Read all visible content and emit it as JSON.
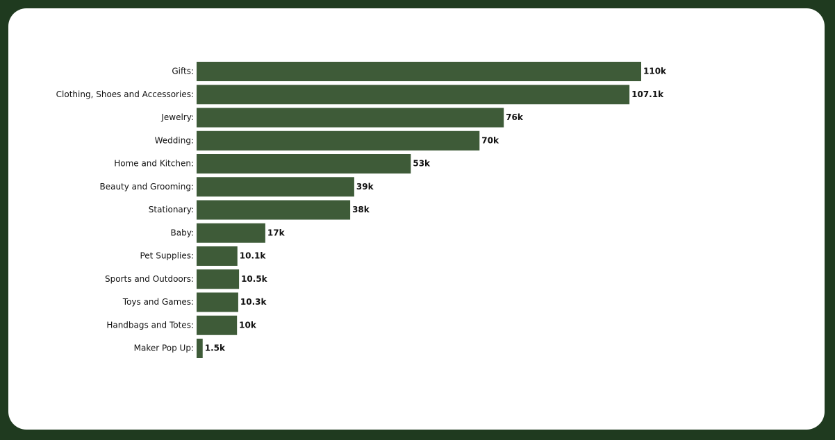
{
  "chart_data": {
    "type": "bar",
    "orientation": "horizontal",
    "categories": [
      "Gifts:",
      "Clothing, Shoes and Accessories:",
      "Jewelry:",
      "Wedding:",
      "Home and Kitchen:",
      "Beauty and Grooming:",
      "Stationary:",
      "Baby:",
      "Pet Supplies:",
      "Sports and Outdoors:",
      "Toys and Games:",
      "Handbags and Totes:",
      "Maker Pop Up:"
    ],
    "values": [
      110000,
      107100,
      76000,
      70000,
      53000,
      39000,
      38000,
      17000,
      10100,
      10500,
      10300,
      10000,
      1500
    ],
    "value_labels": [
      "110k",
      "107.1k",
      "76k",
      "70k",
      "53k",
      "39k",
      "38k",
      "17k",
      "10.1k",
      "10.5k",
      "10.3k",
      "10k",
      "1.5k"
    ],
    "color": "#3e5b38"
  }
}
